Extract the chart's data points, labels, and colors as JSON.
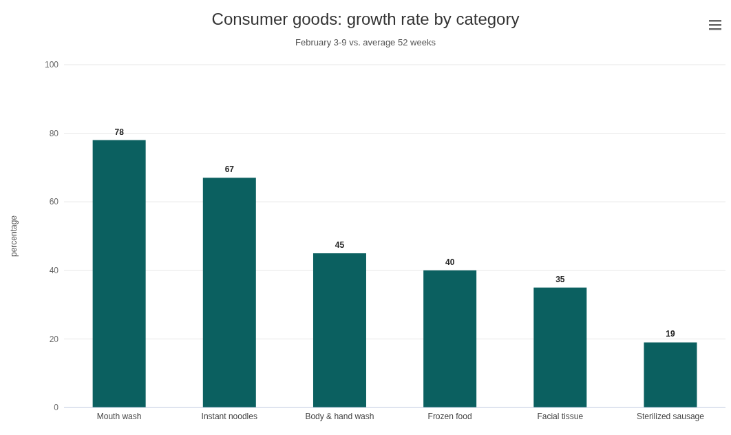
{
  "chart_data": {
    "type": "bar",
    "title": "Consumer goods: growth rate by category",
    "subtitle": "February 3-9 vs. average 52 weeks",
    "ylabel": "percentage",
    "categories": [
      "Mouth wash",
      "Instant noodles",
      "Body & hand wash",
      "Frozen food",
      "Facial tissue",
      "Sterilized sausage"
    ],
    "values": [
      78,
      67,
      45,
      40,
      35,
      19
    ],
    "color": "#0b6060",
    "ylim": [
      0,
      100
    ],
    "yticks": [
      0,
      20,
      40,
      60,
      80,
      100
    ],
    "grid": "y",
    "data_labels": true,
    "legend": false
  }
}
